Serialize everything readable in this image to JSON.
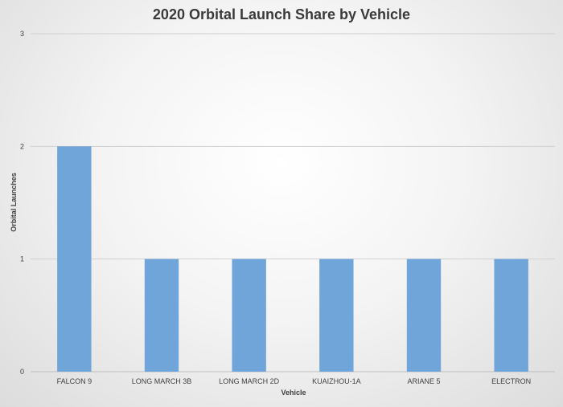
{
  "chart_data": {
    "type": "bar",
    "title": "2020 Orbital Launch Share by Vehicle",
    "xlabel": "Vehicle",
    "ylabel": "Orbital Launches",
    "categories": [
      "FALCON 9",
      "LONG MARCH 3B",
      "LONG MARCH 2D",
      "KUAIZHOU-1A",
      "ARIANE 5",
      "ELECTRON"
    ],
    "values": [
      2,
      1,
      1,
      1,
      1,
      1
    ],
    "ylim": [
      0,
      3
    ],
    "yticks": [
      "0",
      "1",
      "2",
      "3"
    ],
    "grid": true,
    "legend": "none",
    "bar_color": "#6fa5d9"
  }
}
